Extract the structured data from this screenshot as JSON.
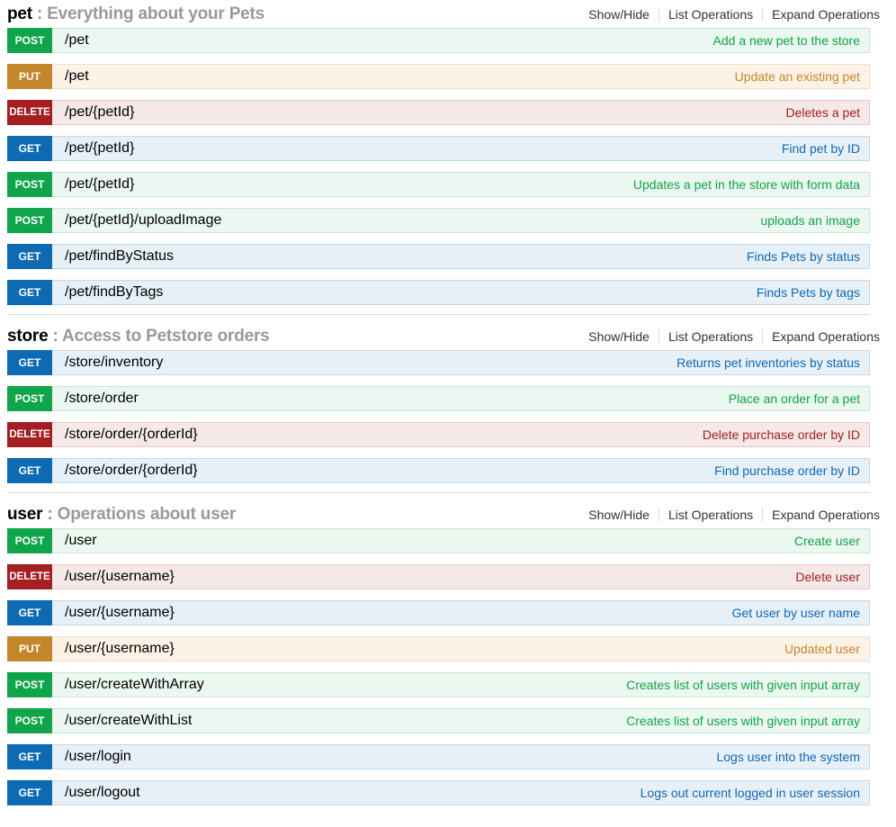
{
  "links": {
    "show_hide": "Show/Hide",
    "list_ops": "List Operations",
    "expand_ops": "Expand Operations"
  },
  "colors": {
    "post": "#10a54a",
    "put": "#c5862b",
    "delete": "#a41e22",
    "get": "#0f6ab4"
  },
  "sections": [
    {
      "name": "pet",
      "description": " : Everything about your Pets",
      "ops": [
        {
          "method": "POST",
          "path": "/pet",
          "summary": "Add a new pet to the store"
        },
        {
          "method": "PUT",
          "path": "/pet",
          "summary": "Update an existing pet"
        },
        {
          "method": "DELETE",
          "path": "/pet/{petId}",
          "summary": "Deletes a pet"
        },
        {
          "method": "GET",
          "path": "/pet/{petId}",
          "summary": "Find pet by ID"
        },
        {
          "method": "POST",
          "path": "/pet/{petId}",
          "summary": "Updates a pet in the store with form data"
        },
        {
          "method": "POST",
          "path": "/pet/{petId}/uploadImage",
          "summary": "uploads an image"
        },
        {
          "method": "GET",
          "path": "/pet/findByStatus",
          "summary": "Finds Pets by status"
        },
        {
          "method": "GET",
          "path": "/pet/findByTags",
          "summary": "Finds Pets by tags"
        }
      ]
    },
    {
      "name": "store",
      "description": " : Access to Petstore orders",
      "ops": [
        {
          "method": "GET",
          "path": "/store/inventory",
          "summary": "Returns pet inventories by status"
        },
        {
          "method": "POST",
          "path": "/store/order",
          "summary": "Place an order for a pet"
        },
        {
          "method": "DELETE",
          "path": "/store/order/{orderId}",
          "summary": "Delete purchase order by ID"
        },
        {
          "method": "GET",
          "path": "/store/order/{orderId}",
          "summary": "Find purchase order by ID"
        }
      ]
    },
    {
      "name": "user",
      "description": " : Operations about user",
      "ops": [
        {
          "method": "POST",
          "path": "/user",
          "summary": "Create user"
        },
        {
          "method": "DELETE",
          "path": "/user/{username}",
          "summary": "Delete user"
        },
        {
          "method": "GET",
          "path": "/user/{username}",
          "summary": "Get user by user name"
        },
        {
          "method": "PUT",
          "path": "/user/{username}",
          "summary": "Updated user"
        },
        {
          "method": "POST",
          "path": "/user/createWithArray",
          "summary": "Creates list of users with given input array"
        },
        {
          "method": "POST",
          "path": "/user/createWithList",
          "summary": "Creates list of users with given input array"
        },
        {
          "method": "GET",
          "path": "/user/login",
          "summary": "Logs user into the system"
        },
        {
          "method": "GET",
          "path": "/user/logout",
          "summary": "Logs out current logged in user session"
        }
      ]
    }
  ]
}
